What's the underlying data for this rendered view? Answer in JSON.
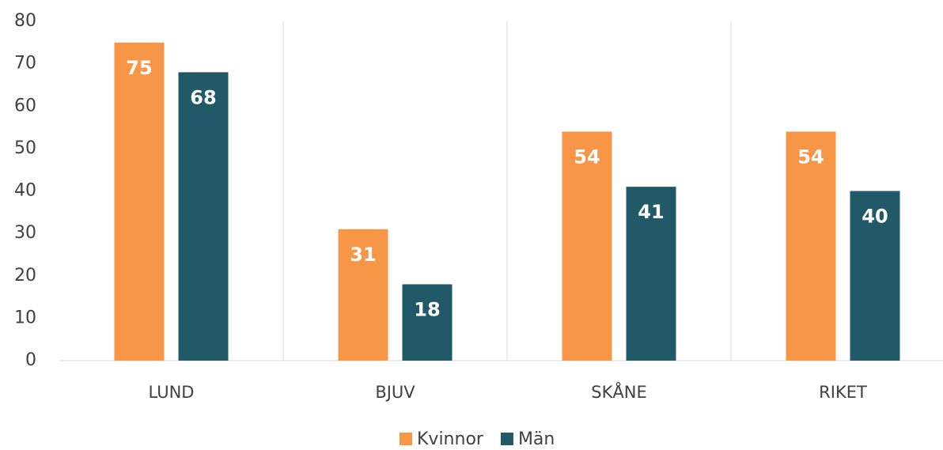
{
  "chart_data": {
    "type": "bar",
    "categories": [
      "LUND",
      "BJUV",
      "SKÅNE",
      "RIKET"
    ],
    "series": [
      {
        "name": "Kvinnor",
        "color": "#f79646",
        "values": [
          75,
          31,
          54,
          54
        ]
      },
      {
        "name": "Män",
        "color": "#215968",
        "values": [
          68,
          18,
          41,
          40
        ]
      }
    ],
    "ylim": [
      0,
      80
    ],
    "yticks": [
      0,
      10,
      20,
      30,
      40,
      50,
      60,
      70,
      80
    ],
    "legend": "bottom"
  }
}
